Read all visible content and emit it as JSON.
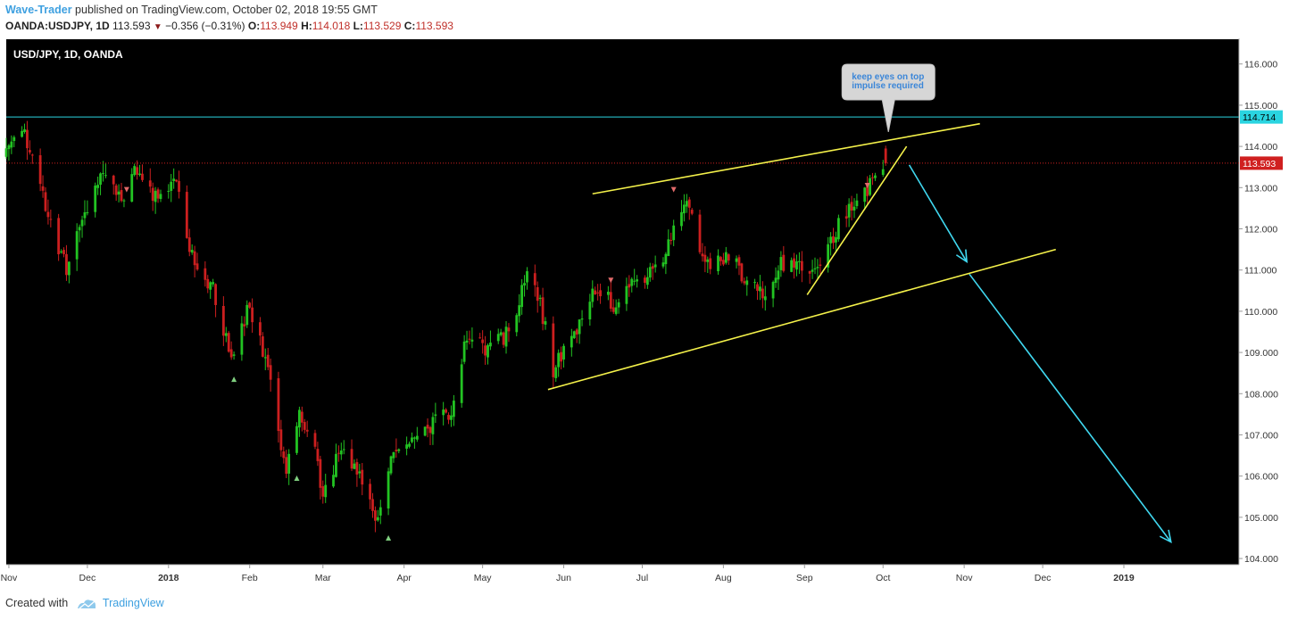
{
  "header": {
    "author": "Wave-Trader",
    "published_text": " published on TradingView.com, October 02, 2018 19:55 GMT",
    "symbol": "OANDA:USDJPY, 1D",
    "last": "113.593",
    "change": "−0.356 (−0.31%)",
    "o_label": "O:",
    "o_value": "113.949",
    "h_label": "H:",
    "h_value": "114.018",
    "l_label": "L:",
    "l_value": "113.529",
    "c_label": "C:",
    "c_value": "113.593"
  },
  "footer": {
    "created_with": "Created with",
    "brand": "TradingView"
  },
  "colors": {
    "background": "#000000",
    "bull": "#22c322",
    "bear": "#cc1f1f",
    "trendline": "#f4f14a",
    "arrow": "#40d8f0",
    "resistance": "#2ad4e0",
    "last_price": "#d02020"
  },
  "chart_data": {
    "type": "candlestick",
    "title": "USD/JPY, 1D, OANDA",
    "y_axis_ticks": [
      "104.000",
      "105.000",
      "106.000",
      "107.000",
      "108.000",
      "109.000",
      "110.000",
      "111.000",
      "112.000",
      "113.000",
      "114.000",
      "115.000",
      "116.000"
    ],
    "y_range": [
      103.85,
      116.6
    ],
    "x_range": [
      "2017-10-31",
      "2019-02-14"
    ],
    "x_axis_labels": [
      {
        "date": "2017-11-01",
        "label": "Nov"
      },
      {
        "date": "2017-12-01",
        "label": "Dec"
      },
      {
        "date": "2018-01-01",
        "label": "2018"
      },
      {
        "date": "2018-02-01",
        "label": "Feb"
      },
      {
        "date": "2018-03-01",
        "label": "Mar"
      },
      {
        "date": "2018-04-01",
        "label": "Apr"
      },
      {
        "date": "2018-05-01",
        "label": "May"
      },
      {
        "date": "2018-06-01",
        "label": "Jun"
      },
      {
        "date": "2018-07-01",
        "label": "Jul"
      },
      {
        "date": "2018-08-01",
        "label": "Aug"
      },
      {
        "date": "2018-09-01",
        "label": "Sep"
      },
      {
        "date": "2018-10-01",
        "label": "Oct"
      },
      {
        "date": "2018-11-01",
        "label": "Nov"
      },
      {
        "date": "2018-12-01",
        "label": "Dec"
      },
      {
        "date": "2019-01-01",
        "label": "2019"
      }
    ],
    "price_path": [
      [
        "2017-10-31",
        113.8
      ],
      [
        "2017-11-06",
        114.6
      ],
      [
        "2017-11-13",
        113.2
      ],
      [
        "2017-11-20",
        111.6
      ],
      [
        "2017-11-24",
        111.1
      ],
      [
        "2017-11-30",
        112.2
      ],
      [
        "2017-12-08",
        113.4
      ],
      [
        "2017-12-15",
        112.6
      ],
      [
        "2017-12-20",
        113.4
      ],
      [
        "2017-12-29",
        112.7
      ],
      [
        "2018-01-05",
        113.1
      ],
      [
        "2018-01-10",
        111.6
      ],
      [
        "2018-01-15",
        110.9
      ],
      [
        "2018-01-19",
        110.6
      ],
      [
        "2018-01-26",
        108.9
      ],
      [
        "2018-02-02",
        110.1
      ],
      [
        "2018-02-08",
        108.8
      ],
      [
        "2018-02-16",
        106.2
      ],
      [
        "2018-02-21",
        107.6
      ],
      [
        "2018-02-26",
        106.8
      ],
      [
        "2018-03-02",
        105.6
      ],
      [
        "2018-03-09",
        106.7
      ],
      [
        "2018-03-16",
        106.0
      ],
      [
        "2018-03-23",
        104.8
      ],
      [
        "2018-03-28",
        106.6
      ],
      [
        "2018-04-06",
        106.9
      ],
      [
        "2018-04-13",
        107.3
      ],
      [
        "2018-04-20",
        107.6
      ],
      [
        "2018-04-25",
        109.2
      ],
      [
        "2018-05-04",
        109.1
      ],
      [
        "2018-05-11",
        109.4
      ],
      [
        "2018-05-21",
        111.1
      ],
      [
        "2018-05-29",
        108.6
      ],
      [
        "2018-06-08",
        109.7
      ],
      [
        "2018-06-15",
        110.6
      ],
      [
        "2018-06-22",
        110.0
      ],
      [
        "2018-06-29",
        110.7
      ],
      [
        "2018-07-10",
        111.2
      ],
      [
        "2018-07-18",
        112.8
      ],
      [
        "2018-07-26",
        111.2
      ],
      [
        "2018-08-03",
        111.3
      ],
      [
        "2018-08-13",
        110.7
      ],
      [
        "2018-08-20",
        110.3
      ],
      [
        "2018-08-24",
        111.2
      ],
      [
        "2018-08-31",
        111.1
      ],
      [
        "2018-09-07",
        110.9
      ],
      [
        "2018-09-14",
        112.0
      ],
      [
        "2018-09-21",
        112.6
      ],
      [
        "2018-09-26",
        112.9
      ],
      [
        "2018-10-01",
        113.9
      ],
      [
        "2018-10-02",
        113.593
      ]
    ],
    "ohlc_last": {
      "date": "2018-10-02",
      "open": 113.949,
      "high": 114.018,
      "low": 113.529,
      "close": 113.593
    },
    "last_price": 113.593,
    "last_price_label": "113.593",
    "resistance_level": 114.714,
    "resistance_label": "114.714",
    "trendlines": [
      {
        "name": "upper-channel",
        "from": [
          "2018-06-12",
          112.85
        ],
        "to": [
          "2018-11-07",
          114.55
        ]
      },
      {
        "name": "lower-channel",
        "from": [
          "2018-05-26",
          108.1
        ],
        "to": [
          "2018-12-06",
          111.5
        ]
      },
      {
        "name": "rising-wedge-line",
        "from": [
          "2018-09-02",
          110.4
        ],
        "to": [
          "2018-10-10",
          114.0
        ]
      }
    ],
    "projection_arrows": [
      {
        "name": "projection-arrow-1",
        "from": [
          "2018-10-11",
          113.55
        ],
        "to": [
          "2018-11-02",
          111.2
        ]
      },
      {
        "name": "projection-arrow-2",
        "from": [
          "2018-11-03",
          110.9
        ],
        "to": [
          "2019-01-19",
          104.4
        ]
      }
    ],
    "fractal_markers": [
      {
        "date": "2017-12-16",
        "price": 112.95,
        "kind": "down"
      },
      {
        "date": "2018-01-26",
        "price": 108.35,
        "kind": "up"
      },
      {
        "date": "2018-02-19",
        "price": 105.95,
        "kind": "up"
      },
      {
        "date": "2018-03-26",
        "price": 104.5,
        "kind": "up"
      },
      {
        "date": "2018-06-19",
        "price": 110.75,
        "kind": "down"
      },
      {
        "date": "2018-07-13",
        "price": 112.95,
        "kind": "down"
      },
      {
        "date": "2018-09-25",
        "price": 113.05,
        "kind": "down"
      }
    ],
    "annotation": {
      "text_line1": "keep eyes on top",
      "text_line2": "impulse required",
      "date": "2018-10-01",
      "price": 114.35
    }
  }
}
